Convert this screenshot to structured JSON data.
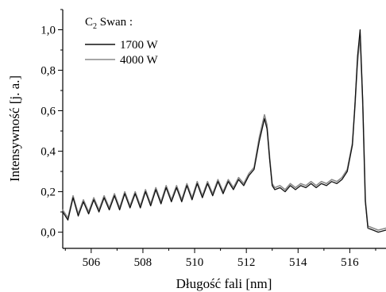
{
  "chart_data": {
    "type": "line",
    "xlabel": "Długość fali [nm]",
    "ylabel": "Intensywność [j. a.]",
    "xlim": [
      504.9,
      517.4
    ],
    "ylim": [
      -0.08,
      1.1
    ],
    "x_ticks": [
      506,
      508,
      510,
      512,
      514,
      516
    ],
    "x_tick_labels": [
      "506",
      "508",
      "510",
      "512",
      "514",
      "516"
    ],
    "y_ticks": [
      0.0,
      0.2,
      0.4,
      0.6,
      0.8,
      1.0
    ],
    "y_tick_labels": [
      "0,0",
      "0,2",
      "0,4",
      "0,6",
      "0,8",
      "1,0"
    ],
    "grid": false,
    "legend": {
      "position": "top-left",
      "title_main": "C",
      "title_sub": "2",
      "title_rest": " Swan :",
      "entries": [
        "1700 W",
        "4000 W"
      ]
    },
    "series": [
      {
        "name": "1700 W",
        "color": "#111111",
        "x": [
          504.9,
          505.1,
          505.3,
          505.5,
          505.7,
          505.9,
          506.1,
          506.3,
          506.5,
          506.7,
          506.9,
          507.1,
          507.3,
          507.5,
          507.7,
          507.9,
          508.1,
          508.3,
          508.5,
          508.7,
          508.9,
          509.1,
          509.3,
          509.5,
          509.7,
          509.9,
          510.1,
          510.3,
          510.5,
          510.7,
          510.9,
          511.1,
          511.3,
          511.5,
          511.7,
          511.9,
          512.1,
          512.3,
          512.5,
          512.7,
          512.8,
          512.9,
          513.0,
          513.1,
          513.3,
          513.5,
          513.7,
          513.9,
          514.1,
          514.3,
          514.5,
          514.7,
          514.9,
          515.1,
          515.3,
          515.5,
          515.7,
          515.9,
          516.1,
          516.2,
          516.3,
          516.4,
          516.5,
          516.6,
          516.7,
          516.9,
          517.1,
          517.4
        ],
        "values": [
          0.1,
          0.06,
          0.17,
          0.08,
          0.15,
          0.09,
          0.16,
          0.1,
          0.17,
          0.11,
          0.18,
          0.11,
          0.19,
          0.12,
          0.19,
          0.12,
          0.2,
          0.13,
          0.21,
          0.14,
          0.22,
          0.15,
          0.22,
          0.15,
          0.23,
          0.16,
          0.24,
          0.17,
          0.24,
          0.18,
          0.25,
          0.19,
          0.25,
          0.21,
          0.26,
          0.23,
          0.28,
          0.31,
          0.45,
          0.56,
          0.51,
          0.36,
          0.23,
          0.21,
          0.22,
          0.2,
          0.23,
          0.21,
          0.23,
          0.22,
          0.24,
          0.22,
          0.24,
          0.23,
          0.25,
          0.24,
          0.26,
          0.3,
          0.43,
          0.63,
          0.87,
          1.0,
          0.65,
          0.15,
          0.02,
          0.01,
          0.0,
          0.01
        ]
      },
      {
        "name": "4000 W",
        "color": "#8a8a8a",
        "x": [
          504.9,
          505.1,
          505.3,
          505.5,
          505.7,
          505.9,
          506.1,
          506.3,
          506.5,
          506.7,
          506.9,
          507.1,
          507.3,
          507.5,
          507.7,
          507.9,
          508.1,
          508.3,
          508.5,
          508.7,
          508.9,
          509.1,
          509.3,
          509.5,
          509.7,
          509.9,
          510.1,
          510.3,
          510.5,
          510.7,
          510.9,
          511.1,
          511.3,
          511.5,
          511.7,
          511.9,
          512.1,
          512.3,
          512.5,
          512.7,
          512.8,
          512.9,
          513.0,
          513.1,
          513.3,
          513.5,
          513.7,
          513.9,
          514.1,
          514.3,
          514.5,
          514.7,
          514.9,
          515.1,
          515.3,
          515.5,
          515.7,
          515.9,
          516.1,
          516.2,
          516.3,
          516.4,
          516.5,
          516.6,
          516.7,
          516.9,
          517.1,
          517.4
        ],
        "values": [
          0.11,
          0.07,
          0.18,
          0.09,
          0.16,
          0.1,
          0.17,
          0.11,
          0.18,
          0.12,
          0.19,
          0.12,
          0.2,
          0.13,
          0.2,
          0.13,
          0.21,
          0.14,
          0.22,
          0.15,
          0.23,
          0.16,
          0.23,
          0.16,
          0.24,
          0.17,
          0.25,
          0.18,
          0.25,
          0.19,
          0.26,
          0.2,
          0.26,
          0.22,
          0.27,
          0.24,
          0.29,
          0.32,
          0.47,
          0.58,
          0.53,
          0.37,
          0.24,
          0.22,
          0.23,
          0.21,
          0.24,
          0.22,
          0.24,
          0.23,
          0.25,
          0.23,
          0.25,
          0.24,
          0.26,
          0.25,
          0.27,
          0.31,
          0.44,
          0.62,
          0.84,
          0.97,
          0.63,
          0.16,
          0.03,
          0.02,
          0.01,
          0.02
        ]
      }
    ]
  }
}
